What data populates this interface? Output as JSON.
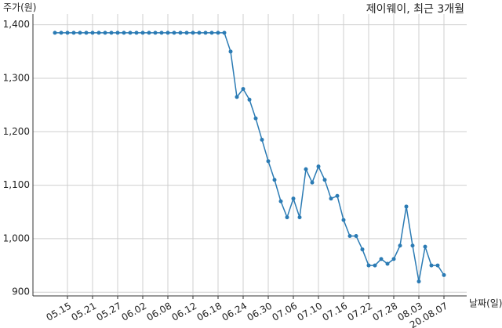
{
  "chart_data": {
    "type": "line",
    "title": "제이웨이, 최근 3개월",
    "ylabel": "주가(원)",
    "xlabel": "날짜(일)",
    "categories": [
      null,
      null,
      "05.15",
      null,
      null,
      null,
      "05.21",
      null,
      null,
      null,
      "05.27",
      null,
      null,
      null,
      "06.02",
      null,
      null,
      null,
      "06.08",
      null,
      null,
      null,
      "06.12",
      null,
      null,
      null,
      "06.18",
      null,
      null,
      null,
      "06.24",
      null,
      null,
      null,
      "06.30",
      null,
      null,
      null,
      "07.06",
      null,
      null,
      null,
      "07.10",
      null,
      null,
      null,
      "07.16",
      null,
      null,
      null,
      "07.22",
      null,
      null,
      null,
      "07.28",
      null,
      null,
      null,
      "08.03",
      null,
      null,
      null,
      "20.08.07"
    ],
    "series": [
      {
        "name": "주가",
        "color": "#2b7bb4",
        "values": [
          1385,
          1385,
          1385,
          1385,
          1385,
          1385,
          1385,
          1385,
          1385,
          1385,
          1385,
          1385,
          1385,
          1385,
          1385,
          1385,
          1385,
          1385,
          1385,
          1385,
          1385,
          1385,
          1385,
          1385,
          1385,
          1385,
          1385,
          1385,
          1350,
          1265,
          1280,
          1260,
          1225,
          1185,
          1145,
          1110,
          1070,
          1040,
          1075,
          1040,
          1130,
          1105,
          1135,
          1110,
          1075,
          1080,
          1035,
          1005,
          1005,
          980,
          950,
          950,
          962,
          953,
          962,
          987,
          1060,
          987,
          920,
          985,
          950,
          950,
          932
        ]
      }
    ],
    "ylim": [
      893,
      1420
    ],
    "yticks": [
      900,
      {
        "value": 1000,
        "label": "1,000"
      },
      {
        "value": 1100,
        "label": "1,100"
      },
      {
        "value": 1200,
        "label": "1,200"
      },
      {
        "value": 1300,
        "label": "1,300"
      },
      {
        "value": 1400,
        "label": "1,400"
      }
    ],
    "grid": true
  }
}
